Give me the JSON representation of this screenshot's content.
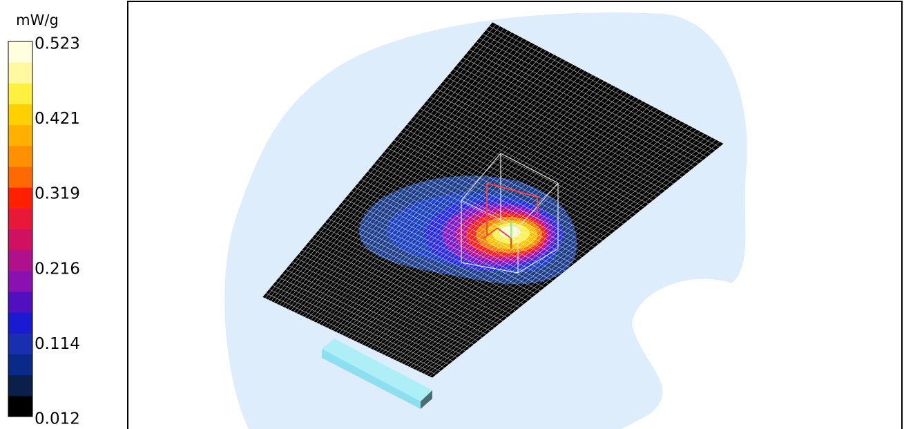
{
  "chart_data": {
    "type": "heatmap",
    "colorbar_label": "mW/g",
    "zlim": [
      0.012,
      0.523
    ],
    "zticks": [
      0.012,
      0.114,
      0.216,
      0.319,
      0.421,
      0.523
    ],
    "colors": [
      "#000000",
      "#0a1f4a",
      "#0a2a8a",
      "#1a2fb0",
      "#1a1ad0",
      "#5010c0",
      "#8a10b0",
      "#b0108a",
      "#d01060",
      "#e81838",
      "#ff2000",
      "#ff6a00",
      "#ff9000",
      "#ffb000",
      "#ffd000",
      "#fff040",
      "#fff8a0",
      "#ffffe0"
    ]
  }
}
